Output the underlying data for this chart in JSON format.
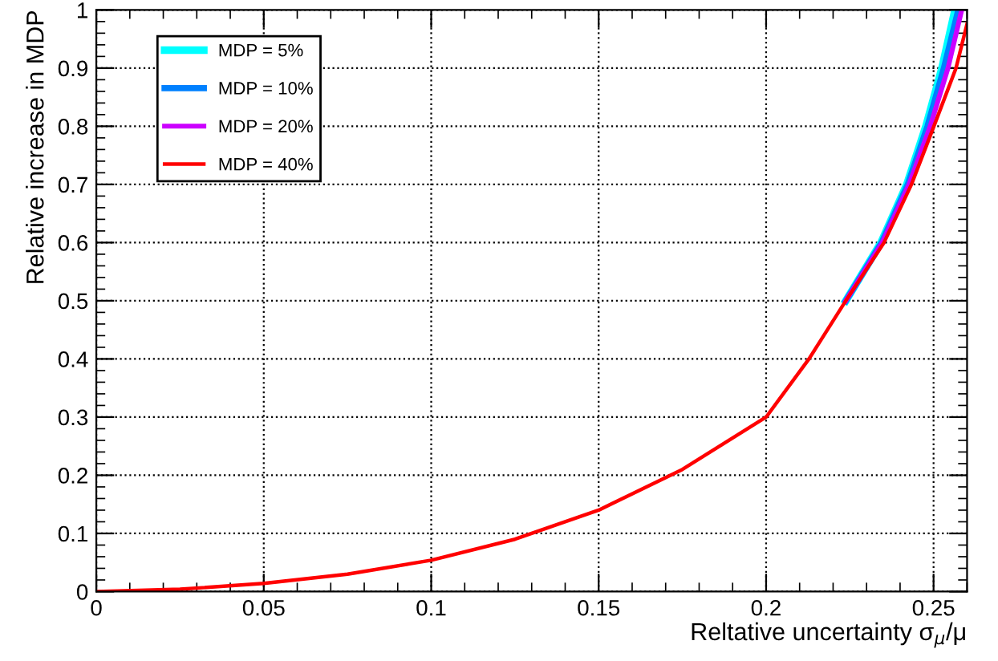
{
  "chart_data": {
    "type": "line",
    "xlabel": "Reltative uncertainty σ$_{μ}$/μ",
    "ylabel": "Relative increase in MDP",
    "xlim": [
      0,
      0.26
    ],
    "ylim": [
      0,
      1
    ],
    "xticks": [
      0,
      0.05,
      0.1,
      0.15,
      0.2,
      0.25
    ],
    "yticks": [
      0,
      0.1,
      0.2,
      0.3,
      0.4,
      0.5,
      0.6,
      0.7,
      0.8,
      0.9,
      1
    ],
    "grid": true,
    "legend": "top left",
    "line_style": "solid",
    "marker": "none",
    "series": [
      {
        "name": "MDP = 5%",
        "color": "#00ffff",
        "x": [
          0.2238,
          0.2343,
          0.242,
          0.2477,
          0.2525,
          0.2564
        ],
        "values": [
          0.5,
          0.6,
          0.7,
          0.8,
          0.9,
          1.0
        ]
      },
      {
        "name": "MDP = 10%",
        "color": "#0080ff",
        "x": [
          0.2238,
          0.2345,
          0.2423,
          0.2482,
          0.2531,
          0.2574
        ],
        "values": [
          0.5,
          0.6,
          0.7,
          0.8,
          0.9,
          1.0
        ]
      },
      {
        "name": "MDP = 20%",
        "color": "#cc00ff",
        "x": [
          0.2238,
          0.2347,
          0.2427,
          0.249,
          0.2543,
          0.2584
        ],
        "values": [
          0.5,
          0.6,
          0.7,
          0.8,
          0.9,
          1.0
        ]
      },
      {
        "name": "MDP = 40%",
        "color": "#ff0000",
        "x": [
          0,
          0.025,
          0.05,
          0.075,
          0.1,
          0.125,
          0.15,
          0.175,
          0.2,
          0.2128,
          0.2238,
          0.2352,
          0.2434,
          0.2501,
          0.2567,
          0.26
        ],
        "values": [
          0,
          0.004,
          0.014,
          0.03,
          0.054,
          0.09,
          0.14,
          0.21,
          0.3,
          0.4,
          0.5,
          0.6,
          0.7,
          0.8,
          0.9,
          0.976
        ]
      }
    ]
  }
}
